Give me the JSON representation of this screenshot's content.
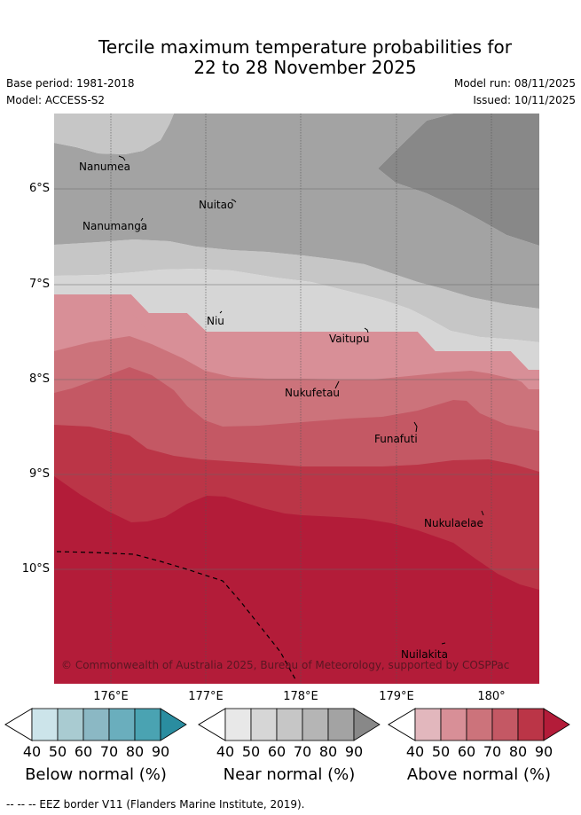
{
  "title_line1": "Tercile maximum temperature probabilities for",
  "title_line2": "22 to 28 November 2025",
  "base_period": "Base period: 1981-2018",
  "model": "Model: ACCESS-S2",
  "model_run": "Model run: 08/11/2025",
  "issued": "Issued: 10/11/2025",
  "latitude_labels": [
    "6°S",
    "7°S",
    "8°S",
    "9°S",
    "10°S"
  ],
  "longitude_labels": [
    "176°E",
    "177°E",
    "178°E",
    "179°E",
    "180°"
  ],
  "places": {
    "nanumea": "Nanumea",
    "nuitao": "Nuitao",
    "nanumanga": "Nanumanga",
    "niu": "Niu",
    "vaitupu": "Vaitupu",
    "nukufetau": "Nukufetau",
    "funafuti": "Funafuti",
    "nukulaelae": "Nukulaelae",
    "nuilakita": "Nuilakita"
  },
  "copyright": "© Commonwealth of Australia 2025, Bureau of Meteorology, supported by COSPPac",
  "colorbars": {
    "ticks": [
      "40",
      "50",
      "60",
      "70",
      "80",
      "90"
    ],
    "below_label": "Below normal (%)",
    "near_label": "Near normal (%)",
    "above_label": "Above normal (%)",
    "below_colors": [
      "#cce4ea",
      "#a9cbd1",
      "#8bb8c4",
      "#6aaebd",
      "#4aa3b2",
      "#2a8da0"
    ],
    "near_colors": [
      "#e8e8e8",
      "#d6d6d6",
      "#c6c6c6",
      "#b5b5b5",
      "#a3a3a3",
      "#888888"
    ],
    "above_colors": [
      "#e2b7bd",
      "#d88f97",
      "#cc737b",
      "#c45864",
      "#bb3547",
      "#b31c39"
    ]
  },
  "footer": "--  --  -- EEZ border V11 (Flanders Marine Institute, 2019)."
}
